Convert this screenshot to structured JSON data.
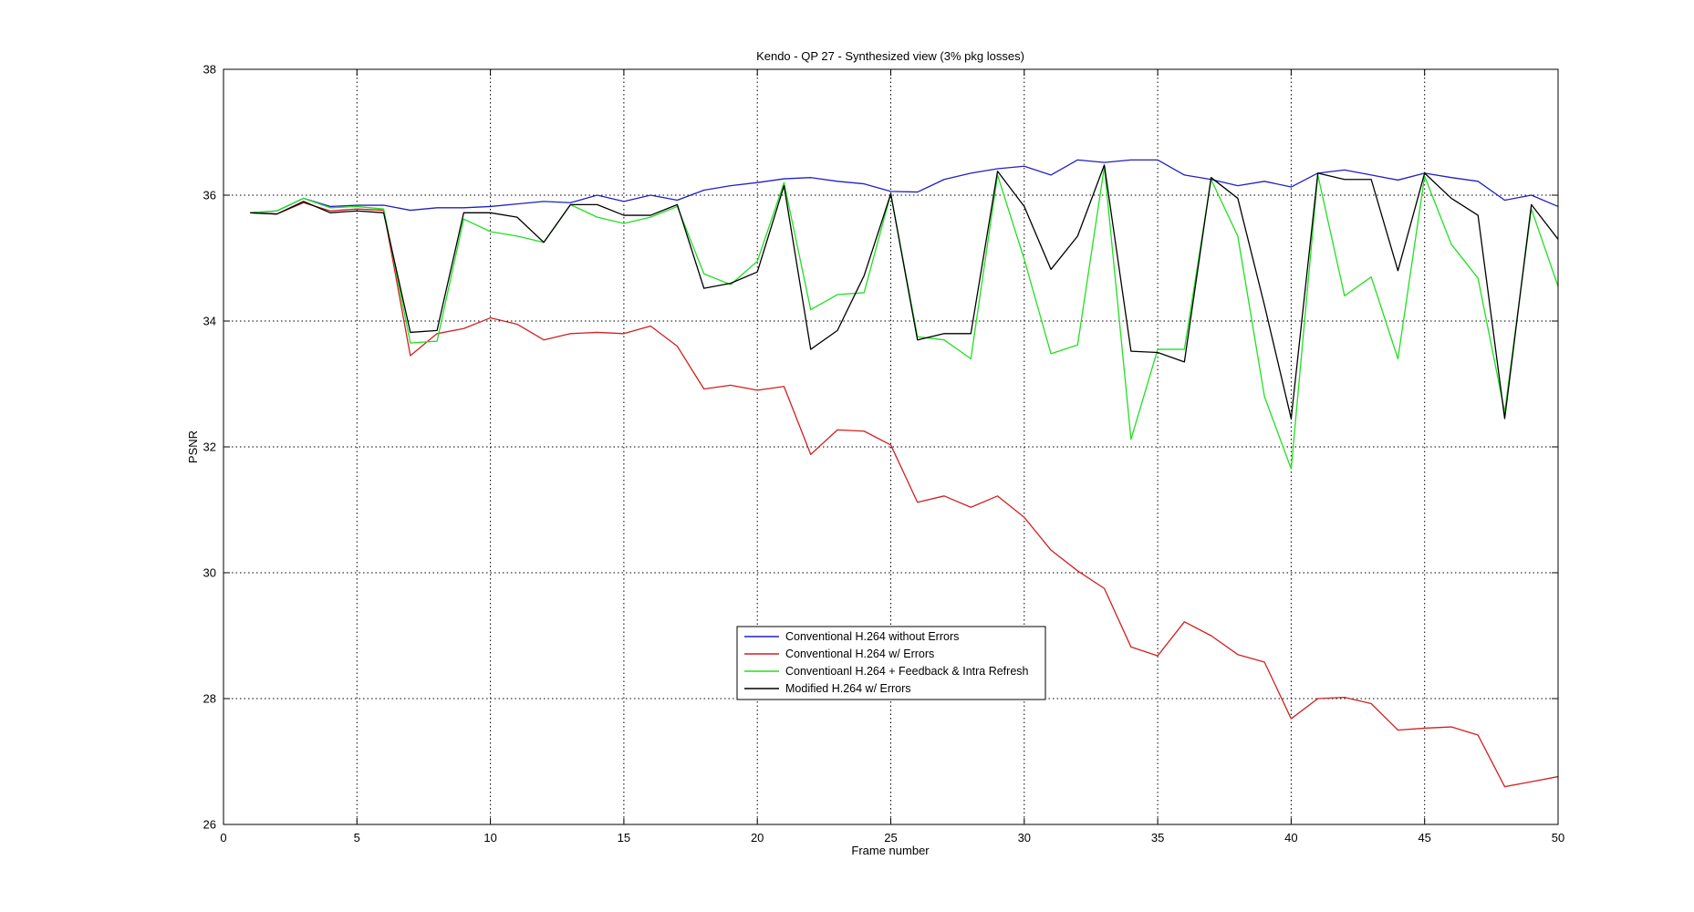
{
  "chart_data": {
    "type": "line",
    "title": "Kendo - QP 27 - Synthesized view (3% pkg losses)",
    "xlabel": "Frame number",
    "ylabel": "PSNR",
    "xlim": [
      0,
      50
    ],
    "ylim": [
      26,
      38
    ],
    "xticks": [
      0,
      5,
      10,
      15,
      20,
      25,
      30,
      35,
      40,
      45,
      50
    ],
    "yticks": [
      26,
      28,
      30,
      32,
      34,
      36,
      38
    ],
    "grid": true,
    "legend_position": "center-bottom",
    "x": [
      1,
      2,
      3,
      4,
      5,
      6,
      7,
      8,
      9,
      10,
      11,
      12,
      13,
      14,
      15,
      16,
      17,
      18,
      19,
      20,
      21,
      22,
      23,
      24,
      25,
      26,
      27,
      28,
      29,
      30,
      31,
      32,
      33,
      34,
      35,
      36,
      37,
      38,
      39,
      40,
      41,
      42,
      43,
      44,
      45,
      46,
      47,
      48,
      49,
      50
    ],
    "series": [
      {
        "name": "Conventional H.264 without Errors",
        "color": "#2020c0",
        "values": [
          35.72,
          35.75,
          35.95,
          35.82,
          35.84,
          35.84,
          35.76,
          35.8,
          35.8,
          35.82,
          35.86,
          35.9,
          35.88,
          36.0,
          35.9,
          36.0,
          35.92,
          36.08,
          36.15,
          36.2,
          36.26,
          36.28,
          36.22,
          36.18,
          36.06,
          36.05,
          36.25,
          36.35,
          36.42,
          36.46,
          36.32,
          36.56,
          36.52,
          36.56,
          36.56,
          36.32,
          36.25,
          36.15,
          36.22,
          36.13,
          36.35,
          36.4,
          36.32,
          36.24,
          36.35,
          36.28,
          36.22,
          35.92,
          36.0,
          35.82
        ]
      },
      {
        "name": "Conventional H.264 w/ Errors",
        "color": "#d02020",
        "values": [
          35.72,
          35.7,
          35.88,
          35.75,
          35.78,
          35.76,
          33.45,
          33.8,
          33.88,
          34.05,
          33.95,
          33.7,
          33.8,
          33.82,
          33.8,
          33.92,
          33.6,
          32.92,
          32.98,
          32.9,
          32.96,
          31.88,
          32.27,
          32.25,
          32.03,
          31.12,
          31.22,
          31.04,
          31.22,
          30.88,
          30.36,
          30.03,
          29.75,
          28.82,
          28.68,
          29.22,
          29.0,
          28.7,
          28.58,
          27.68,
          28.0,
          28.02,
          27.92,
          27.5,
          27.53,
          27.55,
          27.42,
          26.6,
          26.68,
          26.76
        ]
      },
      {
        "name": "Conventioanl H.264 + Feedback & Intra Refresh",
        "color": "#20e020",
        "values": [
          35.72,
          35.75,
          35.95,
          35.8,
          35.82,
          35.78,
          33.65,
          33.68,
          35.62,
          35.42,
          35.35,
          35.25,
          35.85,
          35.65,
          35.55,
          35.65,
          35.82,
          34.75,
          34.58,
          34.95,
          36.2,
          34.18,
          34.42,
          34.45,
          36.02,
          33.75,
          33.7,
          33.4,
          36.32,
          34.98,
          33.48,
          33.62,
          36.45,
          32.12,
          33.55,
          33.55,
          36.25,
          35.35,
          32.8,
          31.65,
          36.32,
          34.4,
          34.7,
          33.4,
          36.3,
          35.22,
          34.68,
          32.55,
          35.78,
          34.55
        ]
      },
      {
        "name": "Modified H.264 w/ Errors",
        "color": "#000000",
        "values": [
          35.72,
          35.7,
          35.9,
          35.72,
          35.75,
          35.72,
          33.82,
          33.85,
          35.72,
          35.72,
          35.65,
          35.25,
          35.85,
          35.85,
          35.68,
          35.68,
          35.85,
          34.52,
          34.6,
          34.78,
          36.15,
          33.55,
          33.85,
          34.72,
          36.02,
          33.7,
          33.8,
          33.8,
          36.38,
          35.82,
          34.82,
          35.35,
          36.48,
          33.52,
          33.5,
          33.35,
          36.28,
          35.95,
          34.25,
          32.45,
          36.35,
          36.25,
          36.25,
          34.8,
          36.35,
          35.95,
          35.68,
          32.45,
          35.85,
          35.3
        ]
      }
    ]
  }
}
